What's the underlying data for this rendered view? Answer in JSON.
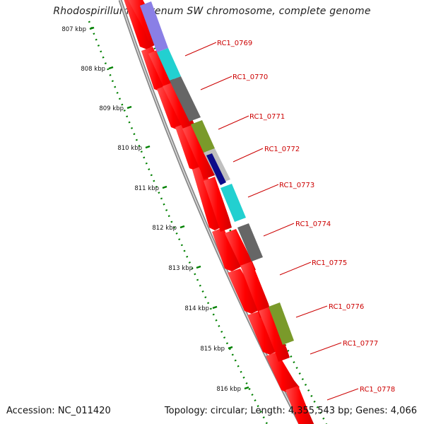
{
  "title": "Rhodospirillum centenum SW chromosome, complete genome",
  "footer": {
    "accession": "Accession: NC_011420",
    "summary": "Topology: circular; Length: 4,355,543 bp; Genes: 4,066"
  },
  "ticks": [
    "807 kbp",
    "808 kbp",
    "809 kbp",
    "810 kbp",
    "811 kbp",
    "812 kbp",
    "813 kbp",
    "814 kbp",
    "815 kbp",
    "816 kbp"
  ],
  "genes": [
    "RC1_0769",
    "RC1_0770",
    "RC1_0771",
    "RC1_0772",
    "RC1_0773",
    "RC1_0774",
    "RC1_0775",
    "RC1_0776",
    "RC1_0777",
    "RC1_0778"
  ],
  "colors": {
    "cds": "#ff0000",
    "gc_skew": "#008000",
    "backbone": "#888888",
    "cog_purple": "#8a7fe6",
    "cog_cyan": "#22d0d0",
    "cog_gray": "#666666",
    "cog_olive": "#7a9a2a",
    "cog_navy": "#0b0b8a",
    "label": "#cc0000"
  }
}
